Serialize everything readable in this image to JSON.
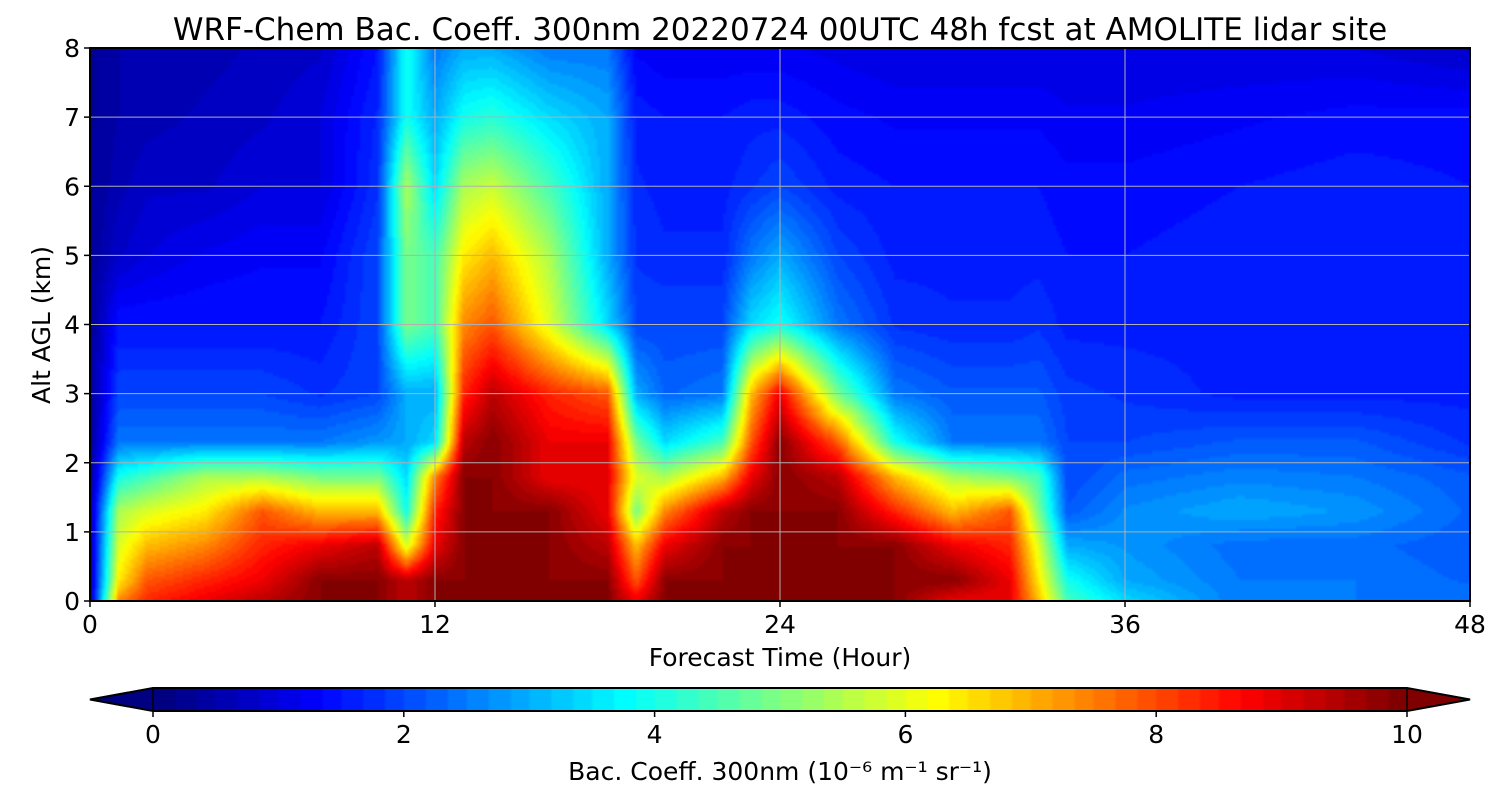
{
  "chart_data": {
    "type": "heatmap",
    "title": "WRF-Chem Bac. Coeff. 300nm  20220724 00UTC 48h fcst at AMOLITE lidar site",
    "xlabel": "Forecast Time (Hour)",
    "ylabel": "Alt AGL (km)",
    "xlim": [
      0,
      48
    ],
    "ylim": [
      0,
      8
    ],
    "xticks": [
      "0",
      "12",
      "24",
      "36",
      "48"
    ],
    "yticks": [
      "0",
      "1",
      "2",
      "3",
      "4",
      "5",
      "6",
      "7",
      "8"
    ],
    "grid": true,
    "colorbar": {
      "label": "Bac. Coeff. 300nm  (10⁻⁶ m⁻¹ sr⁻¹)",
      "range": [
        0,
        10
      ],
      "extend": "both",
      "ticks": [
        "0",
        "2",
        "4",
        "6",
        "8",
        "10"
      ],
      "colormap": "jet"
    },
    "x_hours": [
      0,
      1,
      2,
      4,
      6,
      8,
      10,
      11,
      12,
      13,
      14,
      16,
      18,
      19,
      20,
      22,
      23,
      24,
      26,
      28,
      30,
      32,
      33,
      34,
      36,
      40,
      44,
      48
    ],
    "z_km": [
      0,
      0.3,
      0.8,
      1.3,
      1.8,
      2.3,
      3,
      4,
      5,
      6,
      7,
      8
    ],
    "values": [
      [
        0.5,
        7.5,
        8.5,
        9,
        9.5,
        10,
        10,
        9.5,
        10,
        10,
        10,
        10,
        10,
        9,
        10,
        10,
        10,
        10,
        10,
        10,
        9,
        9,
        7,
        4.5,
        3.5,
        2.5,
        2.5,
        2.5
      ],
      [
        0.5,
        6.5,
        8,
        8.5,
        9,
        10,
        10,
        9.5,
        10,
        10,
        10,
        10,
        10,
        8,
        10,
        10,
        10,
        10,
        10,
        10,
        10,
        9,
        6.5,
        4,
        3,
        2.5,
        2.5,
        2.3
      ],
      [
        0.5,
        6,
        7,
        7.5,
        8.5,
        9,
        9.5,
        6,
        9,
        10,
        10,
        10,
        9.5,
        7,
        9,
        10,
        10,
        10,
        10,
        10,
        9,
        8.5,
        6,
        3,
        2.8,
        2.4,
        2.4,
        2.2
      ],
      [
        0.5,
        5.5,
        6,
        6.5,
        8,
        7,
        7,
        4,
        8.5,
        10,
        10,
        10,
        9,
        5,
        7.5,
        9.5,
        10,
        10,
        10,
        8.5,
        7,
        8,
        5,
        2.2,
        2.7,
        3,
        2.8,
        2.3
      ],
      [
        0.3,
        4,
        4.5,
        5.5,
        5.5,
        5,
        5,
        3.5,
        7.5,
        10,
        10,
        9,
        9,
        6,
        5.5,
        7,
        9,
        10,
        9.5,
        7,
        5.5,
        5,
        4.5,
        2,
        2.4,
        2.6,
        2.5,
        2.2
      ],
      [
        0.3,
        2.5,
        2.5,
        2.5,
        2.5,
        2.5,
        2.8,
        3,
        3.5,
        9.5,
        10,
        9,
        9,
        5,
        3.5,
        4.5,
        8,
        10,
        8,
        4,
        2.5,
        2.5,
        2.5,
        2,
        2,
        2.2,
        2.2,
        1.8
      ],
      [
        0.3,
        2,
        2,
        2,
        2,
        1.8,
        2,
        3,
        3,
        8.5,
        9.5,
        8.5,
        8,
        3,
        2.3,
        2.5,
        7,
        9,
        5,
        2.5,
        2.2,
        2.2,
        2.2,
        1.9,
        1.8,
        1.6,
        1.6,
        1.6
      ],
      [
        0.3,
        1.5,
        1.5,
        1.5,
        1.5,
        1.5,
        2,
        5,
        4.5,
        7.5,
        8,
        6,
        3.5,
        2,
        2,
        2,
        3.5,
        4,
        2.5,
        1.8,
        1.7,
        1.7,
        1.8,
        1.6,
        1.6,
        1.6,
        1.6,
        1.6
      ],
      [
        0.3,
        0.8,
        1,
        1.2,
        1.3,
        1.3,
        2,
        5,
        4.5,
        6.5,
        7,
        5.5,
        3,
        1.8,
        1.7,
        1.7,
        2.5,
        3,
        2,
        1.6,
        1.6,
        1.6,
        1.6,
        1.5,
        1.5,
        1.6,
        1.6,
        1.5
      ],
      [
        0.3,
        0.6,
        0.8,
        0.8,
        1,
        1,
        1.8,
        5.5,
        3.5,
        5.5,
        5.8,
        4.5,
        3,
        1.7,
        1.6,
        1.6,
        1.8,
        2,
        1.6,
        1.5,
        1.5,
        1.5,
        1.5,
        1.4,
        1.4,
        1.5,
        1.6,
        1.5
      ],
      [
        0.3,
        0.5,
        0.6,
        0.7,
        0.8,
        1,
        1.7,
        4,
        3,
        4,
        4.2,
        3.5,
        3,
        1.6,
        1.5,
        1.5,
        1.6,
        1.6,
        1.4,
        1.3,
        1.3,
        1.3,
        1.3,
        1.2,
        1.2,
        1.3,
        1.4,
        1.4
      ],
      [
        0.3,
        0.5,
        0.5,
        0.6,
        0.7,
        0.8,
        1.5,
        4,
        2.5,
        3,
        3,
        2.5,
        2.5,
        1.3,
        1.2,
        1.2,
        1.2,
        1.2,
        1.1,
        1,
        1,
        1,
        1,
        1,
        1,
        1,
        1,
        0.8
      ]
    ]
  }
}
